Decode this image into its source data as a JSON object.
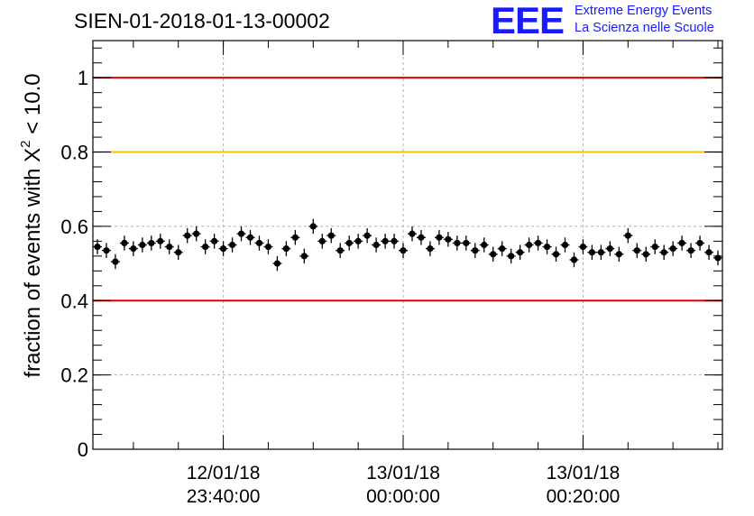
{
  "logo": {
    "letters": "EEE",
    "line1": "Extreme Energy Events",
    "line2": "La Scienza nelle Scuole",
    "color": "#1a1aff"
  },
  "chart_data": {
    "type": "scatter",
    "title": "SIEN-01-2018-01-13-00002",
    "ylabel_main": "fraction of events with ",
    "ylabel_symbol": "X",
    "ylabel_superscript": "2",
    "ylabel_tail": " < 10.0",
    "ylim": [
      0,
      1.1
    ],
    "yticks": [
      {
        "value": 0,
        "label": "0"
      },
      {
        "value": 0.2,
        "label": "0.2"
      },
      {
        "value": 0.4,
        "label": "0.4"
      },
      {
        "value": 0.6,
        "label": "0.6"
      },
      {
        "value": 0.8,
        "label": "0.8"
      },
      {
        "value": 1,
        "label": "1"
      }
    ],
    "x_major_ticks": [
      {
        "index": 14,
        "date": "12/01/18",
        "time": "23:40:00"
      },
      {
        "index": 34,
        "date": "13/01/18",
        "time": "00:00:00"
      },
      {
        "index": 54,
        "date": "13/01/18",
        "time": "00:20:00"
      }
    ],
    "x_range_index": [
      -0.5,
      69.5
    ],
    "grid": true,
    "reference_lines": [
      {
        "value": 1.0,
        "color": "#e00000"
      },
      {
        "value": 0.8,
        "color": "#ffc000"
      },
      {
        "value": 0.4,
        "color": "#e00000"
      }
    ],
    "values": [
      0.545,
      0.535,
      0.505,
      0.555,
      0.54,
      0.55,
      0.555,
      0.56,
      0.545,
      0.53,
      0.575,
      0.58,
      0.545,
      0.56,
      0.54,
      0.55,
      0.58,
      0.57,
      0.555,
      0.545,
      0.5,
      0.54,
      0.57,
      0.52,
      0.6,
      0.56,
      0.575,
      0.535,
      0.555,
      0.56,
      0.575,
      0.55,
      0.56,
      0.56,
      0.535,
      0.58,
      0.57,
      0.54,
      0.57,
      0.565,
      0.555,
      0.555,
      0.535,
      0.55,
      0.525,
      0.54,
      0.52,
      0.53,
      0.55,
      0.555,
      0.545,
      0.525,
      0.55,
      0.51,
      0.545,
      0.53,
      0.53,
      0.54,
      0.525,
      0.575,
      0.535,
      0.525,
      0.545,
      0.53,
      0.54,
      0.555,
      0.535,
      0.555,
      0.53,
      0.515
    ],
    "error_y": 0.02,
    "marker_color": "#000000"
  }
}
